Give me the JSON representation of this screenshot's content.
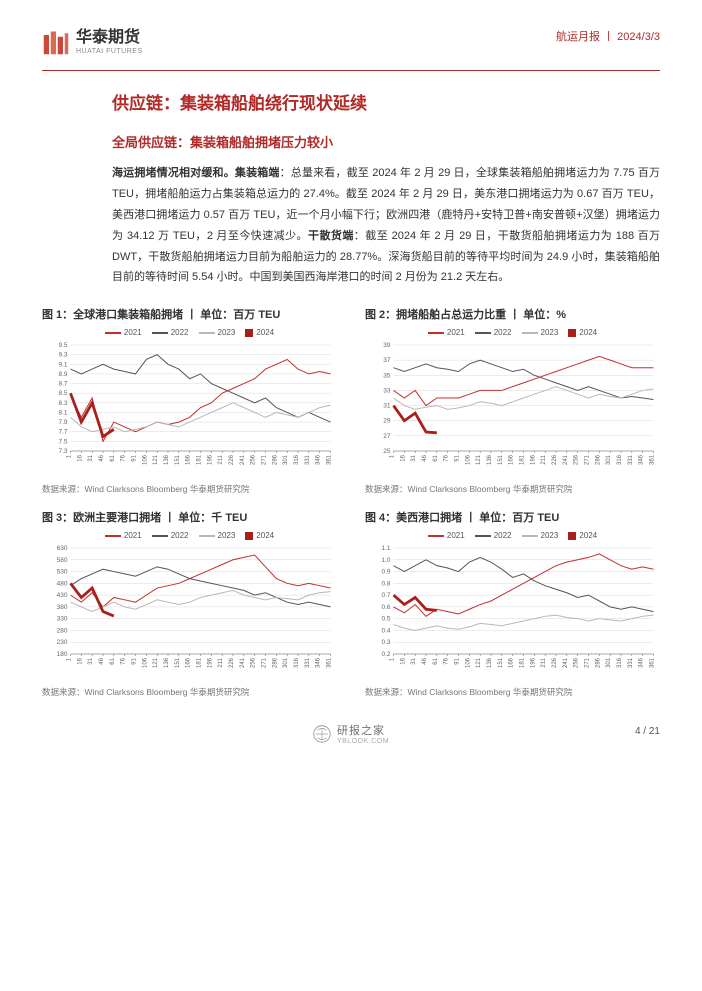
{
  "header": {
    "brand_cn": "华泰期货",
    "brand_en": "HUATAI FUTURES",
    "report_type": "航运月报",
    "date": "2024/3/3",
    "logo_color": "#c94a3a"
  },
  "headings": {
    "h1": "供应链：集装箱船舶绕行现状延续",
    "h2": "全局供应链：集装箱船舶拥堵压力较小"
  },
  "paragraph": "海运拥堵情况相对缓和。集装箱端：总量来看，截至 2024 年 2 月 29 日，全球集装箱船舶拥堵运力为 7.75 百万 TEU，拥堵船舶运力占集装箱总运力的 27.4%。截至 2024 年 2 月 29 日，美东港口拥堵运力为 0.67 百万 TEU，美西港口拥堵运力 0.57 百万 TEU，近一个月小幅下行；欧洲四港（鹿特丹+安特卫普+南安普顿+汉堡）拥堵运力为 34.12 万 TEU，2 月至今快速减少。干散货端：截至 2024 年 2 月 29 日，干散货船舶拥堵运力为 188 百万 DWT，干散货船舶拥堵运力目前为船舶运力的 28.77%。深海货船目前的等待平均时间为 24.9 小时，集装箱船舶目前的等待时间 5.54 小时。中国到美国西海岸港口的时间 2 月份为 21.2 天左右。",
  "paragraph_bold_runs": [
    "海运拥堵情况相对缓和。集装箱端",
    "干散货端"
  ],
  "colors": {
    "red": "#c32f2b",
    "dark_red_thick": "#a81f1c",
    "grey_dark": "#555555",
    "grey_light": "#b8b8b8",
    "grid": "#d9d9d9",
    "axis": "#666666",
    "bg": "#ffffff"
  },
  "legend_labels": [
    "2021",
    "2022",
    "2023",
    "2024"
  ],
  "x_ticks": [
    1,
    16,
    31,
    46,
    61,
    76,
    91,
    106,
    121,
    136,
    151,
    166,
    181,
    196,
    211,
    226,
    241,
    256,
    271,
    286,
    301,
    316,
    331,
    346,
    361
  ],
  "source_line": "数据来源：Wind Clarksons Bloomberg 华泰期货研究院",
  "charts": [
    {
      "title": "图 1：全球港口集装箱船拥堵 丨 单位：百万 TEU",
      "ylim": [
        7.3,
        9.5
      ],
      "ytick_step": 0.2,
      "series": {
        "2021": [
          8.45,
          8.0,
          8.4,
          7.5,
          7.9,
          7.8,
          7.7,
          7.8,
          7.9,
          7.85,
          7.9,
          8.0,
          8.2,
          8.3,
          8.5,
          8.6,
          8.7,
          8.8,
          9.0,
          9.1,
          9.2,
          9.0,
          8.9,
          8.95,
          8.9
        ],
        "2022": [
          9.0,
          8.9,
          9.0,
          9.1,
          9.0,
          8.95,
          8.9,
          9.2,
          9.3,
          9.1,
          9.0,
          8.8,
          8.9,
          8.7,
          8.6,
          8.5,
          8.4,
          8.3,
          8.4,
          8.2,
          8.1,
          8.0,
          8.1,
          8.0,
          7.9
        ],
        "2023": [
          8.0,
          7.8,
          7.7,
          7.75,
          7.8,
          7.7,
          7.75,
          7.8,
          7.9,
          7.85,
          7.8,
          7.9,
          8.0,
          8.1,
          8.2,
          8.3,
          8.2,
          8.1,
          8.0,
          8.1,
          8.05,
          8.0,
          8.1,
          8.2,
          8.25
        ],
        "2024_x": [
          1,
          16,
          31,
          46,
          61
        ],
        "2024": [
          8.5,
          7.9,
          8.3,
          7.6,
          7.75
        ]
      }
    },
    {
      "title": "图 2：拥堵船舶占总运力比重 丨 单位：%",
      "ylim": [
        25,
        39
      ],
      "ytick_step": 2,
      "series": {
        "2021": [
          33,
          32,
          33,
          31,
          32,
          32,
          32,
          32.5,
          33,
          33,
          33,
          33.5,
          34,
          34.5,
          35,
          35.5,
          36,
          36.5,
          37,
          37.5,
          37,
          36.5,
          36,
          36,
          36
        ],
        "2022": [
          36,
          35.5,
          36,
          36.5,
          36,
          35.8,
          35.5,
          36.5,
          37,
          36.5,
          36,
          35.5,
          35.8,
          35,
          34.5,
          34,
          33.5,
          33,
          33.5,
          33,
          32.5,
          32,
          32.2,
          32,
          31.8
        ],
        "2023": [
          32,
          31,
          30.5,
          30.8,
          31,
          30.5,
          30.7,
          31,
          31.5,
          31.3,
          31,
          31.5,
          32,
          32.5,
          33,
          33.5,
          33,
          32.5,
          32,
          32.5,
          32.2,
          32,
          32.5,
          33,
          33.2
        ],
        "2024_x": [
          1,
          16,
          31,
          46,
          61
        ],
        "2024": [
          31,
          29,
          30,
          27.5,
          27.4
        ]
      }
    },
    {
      "title": "图 3：欧洲主要港口拥堵 丨 单位：千 TEU",
      "ylim": [
        180,
        630
      ],
      "ytick_step": 50,
      "series": {
        "2021": [
          430,
          400,
          440,
          380,
          420,
          410,
          400,
          430,
          460,
          470,
          480,
          500,
          520,
          540,
          560,
          580,
          590,
          600,
          550,
          500,
          480,
          470,
          480,
          470,
          460
        ],
        "2022": [
          470,
          500,
          520,
          540,
          530,
          520,
          510,
          530,
          550,
          540,
          520,
          500,
          490,
          480,
          470,
          460,
          450,
          430,
          440,
          420,
          400,
          390,
          400,
          390,
          380
        ],
        "2023": [
          400,
          380,
          360,
          380,
          400,
          380,
          370,
          390,
          410,
          400,
          390,
          400,
          420,
          430,
          440,
          450,
          430,
          420,
          410,
          420,
          415,
          410,
          430,
          440,
          445
        ],
        "2024_x": [
          1,
          16,
          31,
          46,
          61
        ],
        "2024": [
          480,
          420,
          460,
          360,
          341
        ]
      }
    },
    {
      "title": "图 4：美西港口拥堵 丨 单位：百万 TEU",
      "ylim": [
        0.2,
        1.1
      ],
      "ytick_step": 0.1,
      "series": {
        "2021": [
          0.6,
          0.55,
          0.62,
          0.52,
          0.58,
          0.56,
          0.54,
          0.58,
          0.62,
          0.65,
          0.7,
          0.75,
          0.8,
          0.85,
          0.9,
          0.95,
          0.98,
          1.0,
          1.02,
          1.05,
          1.0,
          0.95,
          0.92,
          0.94,
          0.92
        ],
        "2022": [
          0.95,
          0.9,
          0.95,
          1.0,
          0.95,
          0.93,
          0.9,
          0.98,
          1.02,
          0.98,
          0.92,
          0.85,
          0.88,
          0.82,
          0.78,
          0.75,
          0.72,
          0.68,
          0.7,
          0.65,
          0.6,
          0.58,
          0.6,
          0.58,
          0.56
        ],
        "2023": [
          0.45,
          0.42,
          0.4,
          0.42,
          0.44,
          0.42,
          0.41,
          0.43,
          0.46,
          0.45,
          0.44,
          0.46,
          0.48,
          0.5,
          0.52,
          0.53,
          0.51,
          0.5,
          0.48,
          0.5,
          0.49,
          0.48,
          0.5,
          0.52,
          0.53
        ],
        "2024_x": [
          1,
          16,
          31,
          46,
          61
        ],
        "2024": [
          0.7,
          0.62,
          0.68,
          0.58,
          0.57
        ]
      }
    }
  ],
  "footer": {
    "page": "4 / 21"
  },
  "watermark": {
    "text": "研报之家",
    "sub": "YBLOOK.COM"
  }
}
